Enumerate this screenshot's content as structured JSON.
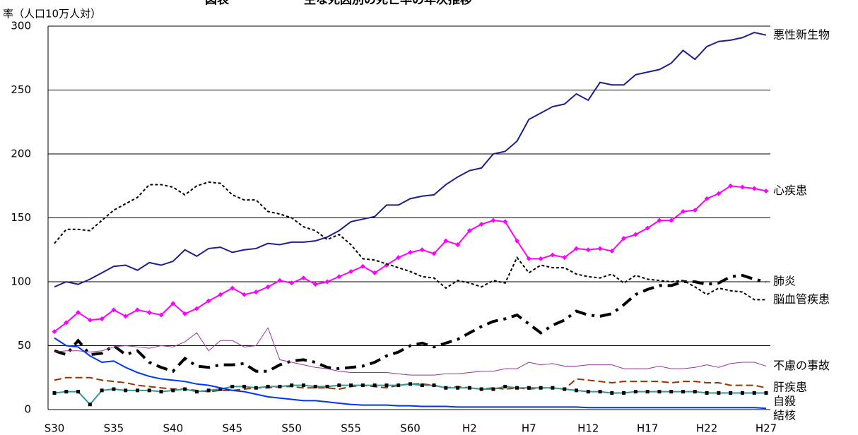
{
  "chart_data": {
    "type": "line",
    "title": "主な死因別の死亡率の年次推移",
    "title_prefix": "図表",
    "y_label": "率（人口10万人対）",
    "categories": [
      "S30",
      null,
      null,
      null,
      null,
      "S35",
      null,
      null,
      null,
      null,
      "S40",
      null,
      null,
      null,
      null,
      "S45",
      null,
      null,
      null,
      null,
      "S50",
      null,
      null,
      null,
      null,
      "S55",
      null,
      null,
      null,
      null,
      "S60",
      null,
      null,
      null,
      null,
      "H2",
      null,
      null,
      null,
      null,
      "H7",
      null,
      null,
      null,
      null,
      "H12",
      null,
      null,
      null,
      null,
      "H17",
      null,
      null,
      null,
      null,
      "H22",
      null,
      null,
      null,
      null,
      "H27"
    ],
    "ylim": [
      0,
      300
    ],
    "yticks": [
      0,
      50,
      100,
      150,
      200,
      250,
      300
    ],
    "grid": true,
    "series": [
      {
        "name": "悪性新生物",
        "color": "#1f1f8c",
        "dash": "solid",
        "width": 2,
        "values": [
          96,
          100,
          98,
          102,
          107,
          112,
          113,
          109,
          115,
          113,
          116,
          125,
          120,
          126,
          127,
          123,
          125,
          126,
          130,
          129,
          131,
          131,
          132,
          135,
          140,
          147,
          149,
          151,
          160,
          160,
          165,
          167,
          168,
          176,
          182,
          187,
          189,
          200,
          202,
          210,
          227,
          232,
          237,
          239,
          247,
          242,
          256,
          254,
          254,
          262,
          264,
          266,
          271,
          281,
          274,
          284,
          288,
          289,
          291,
          295,
          293
        ]
      },
      {
        "name": "心疾患",
        "color": "#ff00ff",
        "dash": "solid",
        "width": 2,
        "marker": "diamond",
        "values": [
          61,
          68,
          76,
          70,
          71,
          78,
          73,
          78,
          76,
          74,
          83,
          75,
          79,
          85,
          90,
          95,
          90,
          92,
          96,
          101,
          99,
          103,
          98,
          100,
          104,
          108,
          112,
          107,
          113,
          119,
          123,
          125,
          122,
          132,
          129,
          140,
          145,
          148,
          147,
          132,
          118,
          118,
          121,
          119,
          126,
          125,
          126,
          124,
          134,
          137,
          142,
          148,
          148,
          155,
          156,
          165,
          169,
          175,
          174,
          173,
          171
        ]
      },
      {
        "name": "肺炎",
        "color": "#000000",
        "dash": "dashdot",
        "width": 4,
        "values": [
          46,
          43,
          54,
          43,
          44,
          50,
          43,
          46,
          37,
          33,
          30,
          40,
          34,
          33,
          35,
          35,
          36,
          30,
          30,
          35,
          38,
          39,
          37,
          33,
          32,
          33,
          34,
          37,
          42,
          45,
          50,
          52,
          49,
          52,
          55,
          60,
          65,
          69,
          71,
          74,
          67,
          60,
          66,
          70,
          77,
          74,
          73,
          75,
          82,
          90,
          94,
          97,
          97,
          100,
          100,
          98,
          99,
          104,
          105,
          102,
          100
        ]
      },
      {
        "name": "脳血管疾患",
        "color": "#000000",
        "dash": "dotted",
        "width": 2,
        "values": [
          130,
          141,
          141,
          140,
          148,
          156,
          161,
          166,
          176,
          176,
          174,
          168,
          175,
          178,
          177,
          168,
          164,
          164,
          155,
          153,
          150,
          143,
          140,
          133,
          137,
          129,
          118,
          117,
          114,
          111,
          108,
          104,
          103,
          95,
          101,
          99,
          96,
          101,
          99,
          119,
          107,
          113,
          111,
          111,
          106,
          104,
          103,
          106,
          99,
          105,
          102,
          101,
          100,
          101,
          96,
          90,
          95,
          93,
          92,
          86,
          86
        ]
      },
      {
        "name": "不慮の事故",
        "color": "#993399",
        "dash": "solid",
        "width": 1,
        "values": [
          45,
          46,
          46,
          45,
          46,
          49,
          50,
          49,
          48,
          50,
          49,
          53,
          60,
          46,
          54,
          54,
          49,
          50,
          64,
          39,
          37,
          35,
          33,
          32,
          30,
          29,
          29,
          29,
          29,
          28,
          27,
          27,
          27,
          28,
          28,
          29,
          30,
          30,
          32,
          32,
          37,
          35,
          36,
          34,
          34,
          35,
          35,
          35,
          32,
          32,
          32,
          34,
          32,
          32,
          33,
          35,
          33,
          36,
          37,
          37,
          34
        ]
      },
      {
        "name": "肝疾患",
        "color": "#993300",
        "dash": "dashed",
        "width": 2,
        "values": [
          23,
          25,
          25,
          25,
          23,
          22,
          21,
          19,
          18,
          17,
          16,
          16,
          15,
          14,
          15,
          15,
          16,
          17,
          17,
          18,
          18,
          17,
          17,
          17,
          16,
          18,
          19,
          18,
          17,
          19,
          20,
          20,
          19,
          17,
          18,
          17,
          16,
          17,
          16,
          17,
          16,
          17,
          17,
          16,
          24,
          23,
          22,
          21,
          22,
          22,
          22,
          22,
          21,
          22,
          22,
          21,
          21,
          19,
          19,
          19,
          17
        ]
      },
      {
        "name": "自殺",
        "color": "#339999",
        "dash": "solid",
        "width": 2,
        "marker": "square",
        "marker_color": "#000000",
        "values": [
          13,
          14,
          14,
          4,
          15,
          16,
          15,
          15,
          15,
          14,
          15,
          16,
          14,
          15,
          16,
          18,
          18,
          17,
          18,
          18,
          19,
          19,
          18,
          18,
          19,
          19,
          19,
          19,
          19,
          19,
          20,
          19,
          19,
          17,
          17,
          17,
          16,
          16,
          18,
          17,
          17,
          17,
          17,
          16,
          15,
          14,
          14,
          13,
          13,
          14,
          14,
          14,
          14,
          14,
          14,
          13,
          13,
          13,
          13,
          13,
          13
        ]
      },
      {
        "name": "結核",
        "color": "#0033ff",
        "dash": "solid",
        "width": 2,
        "values": [
          56,
          50,
          49,
          42,
          37,
          38,
          33,
          29,
          26,
          24,
          23,
          22,
          20,
          19,
          17,
          15,
          14,
          12,
          10,
          9,
          8,
          7,
          7,
          6,
          5,
          4,
          3.5,
          3.5,
          3.5,
          3,
          3,
          2.5,
          2.5,
          2.5,
          2,
          2,
          2,
          2,
          2,
          2,
          2,
          2,
          2,
          2,
          2,
          1.5,
          1.5,
          1.5,
          1.5,
          1.5,
          1.5,
          1.5,
          1.5,
          1.5,
          1.5,
          1.5,
          1.5,
          1.5,
          1.5,
          1.5,
          1
        ]
      }
    ]
  }
}
